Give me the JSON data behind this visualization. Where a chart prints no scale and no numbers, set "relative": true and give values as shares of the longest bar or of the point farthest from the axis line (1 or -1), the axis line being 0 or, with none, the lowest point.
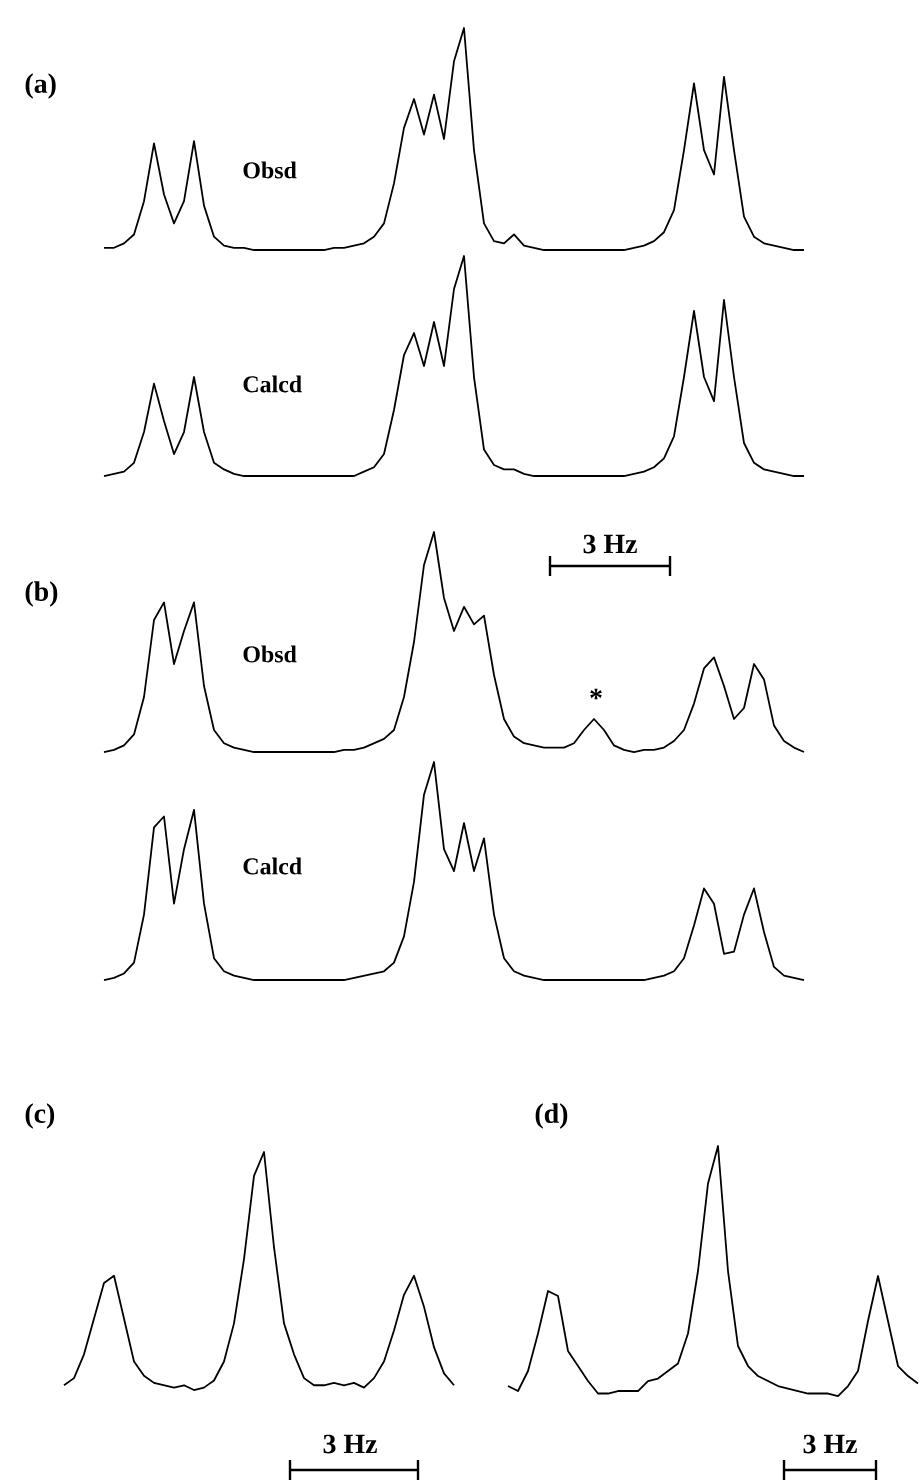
{
  "chart_data": [
    {
      "type": "line",
      "relative": true,
      "title": "(a)",
      "categories": [
        null,
        null,
        null,
        null,
        null,
        null,
        null,
        null,
        null,
        null,
        null,
        null,
        null,
        null,
        null,
        null,
        null,
        null,
        null,
        null,
        null,
        null,
        null,
        null,
        null,
        null,
        null,
        null,
        null,
        null,
        null,
        null,
        null,
        null,
        null,
        null,
        null,
        null,
        null,
        null,
        null,
        null,
        null,
        null,
        null,
        null,
        null,
        null,
        null,
        null,
        null,
        null,
        null,
        null,
        null,
        null,
        null,
        null,
        null,
        null,
        null,
        null,
        null,
        null,
        null,
        null,
        null,
        null,
        null,
        null,
        null
      ],
      "series": [
        {
          "name": "Obsd",
          "color": "#000000",
          "values": [
            0.01,
            0.01,
            0.03,
            0.07,
            0.22,
            0.48,
            0.25,
            0.12,
            0.22,
            0.49,
            0.2,
            0.06,
            0.02,
            0.01,
            0.01,
            0,
            0,
            0,
            0,
            0,
            0,
            0,
            0,
            0.01,
            0.01,
            0.02,
            0.03,
            0.06,
            0.12,
            0.3,
            0.55,
            0.68,
            0.52,
            0.7,
            0.5,
            0.85,
            1,
            0.45,
            0.12,
            0.04,
            0.03,
            0.07,
            0.02,
            0.01,
            0,
            0,
            0,
            0,
            0,
            0,
            0,
            0,
            0,
            0.01,
            0.02,
            0.04,
            0.08,
            0.18,
            0.45,
            0.75,
            0.45,
            0.34,
            0.78,
            0.45,
            0.15,
            0.06,
            0.03,
            0.02,
            0.01,
            0,
            0
          ]
        }
      ]
    },
    {
      "type": "line",
      "relative": true,
      "categories": [
        null,
        null,
        null,
        null,
        null,
        null,
        null,
        null,
        null,
        null,
        null,
        null,
        null,
        null,
        null,
        null,
        null,
        null,
        null,
        null,
        null,
        null,
        null,
        null,
        null,
        null,
        null,
        null,
        null,
        null,
        null,
        null,
        null,
        null,
        null,
        null,
        null,
        null,
        null,
        null,
        null,
        null,
        null,
        null,
        null,
        null,
        null,
        null,
        null,
        null,
        null,
        null,
        null,
        null,
        null,
        null,
        null,
        null,
        null,
        null,
        null,
        null,
        null,
        null,
        null,
        null,
        null,
        null,
        null,
        null,
        null
      ],
      "series": [
        {
          "name": "Calcd",
          "color": "#000000",
          "values": [
            0,
            0.01,
            0.02,
            0.06,
            0.2,
            0.42,
            0.25,
            0.1,
            0.2,
            0.45,
            0.2,
            0.06,
            0.03,
            0.01,
            0,
            0,
            0,
            0,
            0,
            0,
            0,
            0,
            0,
            0,
            0,
            0,
            0.02,
            0.04,
            0.1,
            0.3,
            0.55,
            0.65,
            0.5,
            0.7,
            0.5,
            0.85,
            1,
            0.45,
            0.12,
            0.05,
            0.03,
            0.03,
            0.01,
            0,
            0,
            0,
            0,
            0,
            0,
            0,
            0,
            0,
            0,
            0.01,
            0.02,
            0.04,
            0.08,
            0.18,
            0.45,
            0.75,
            0.45,
            0.34,
            0.8,
            0.45,
            0.15,
            0.06,
            0.03,
            0.02,
            0.01,
            0,
            0
          ]
        }
      ]
    },
    {
      "type": "line",
      "relative": true,
      "title": "(b)",
      "annotations": [
        "3 Hz",
        "*"
      ],
      "categories": [
        null,
        null,
        null,
        null,
        null,
        null,
        null,
        null,
        null,
        null,
        null,
        null,
        null,
        null,
        null,
        null,
        null,
        null,
        null,
        null,
        null,
        null,
        null,
        null,
        null,
        null,
        null,
        null,
        null,
        null,
        null,
        null,
        null,
        null,
        null,
        null,
        null,
        null,
        null,
        null,
        null,
        null,
        null,
        null,
        null,
        null,
        null,
        null,
        null,
        null,
        null,
        null,
        null,
        null,
        null,
        null,
        null,
        null,
        null,
        null,
        null,
        null,
        null,
        null,
        null,
        null,
        null,
        null,
        null,
        null,
        null
      ],
      "series": [
        {
          "name": "Obsd",
          "color": "#000000",
          "values": [
            0,
            0.01,
            0.03,
            0.08,
            0.25,
            0.6,
            0.68,
            0.4,
            0.55,
            0.68,
            0.3,
            0.1,
            0.04,
            0.02,
            0.01,
            0,
            0,
            0,
            0,
            0,
            0,
            0,
            0,
            0,
            0.01,
            0.01,
            0.02,
            0.04,
            0.06,
            0.1,
            0.25,
            0.5,
            0.85,
            1,
            0.7,
            0.55,
            0.66,
            0.58,
            0.62,
            0.35,
            0.15,
            0.07,
            0.04,
            0.03,
            0.02,
            0.02,
            0.02,
            0.04,
            0.1,
            0.15,
            0.1,
            0.03,
            0.01,
            0,
            0.01,
            0.01,
            0.02,
            0.05,
            0.1,
            0.22,
            0.38,
            0.43,
            0.3,
            0.15,
            0.2,
            0.4,
            0.33,
            0.12,
            0.05,
            0.02,
            0
          ]
        }
      ]
    },
    {
      "type": "line",
      "relative": true,
      "categories": [
        null,
        null,
        null,
        null,
        null,
        null,
        null,
        null,
        null,
        null,
        null,
        null,
        null,
        null,
        null,
        null,
        null,
        null,
        null,
        null,
        null,
        null,
        null,
        null,
        null,
        null,
        null,
        null,
        null,
        null,
        null,
        null,
        null,
        null,
        null,
        null,
        null,
        null,
        null,
        null,
        null,
        null,
        null,
        null,
        null,
        null,
        null,
        null,
        null,
        null,
        null,
        null,
        null,
        null,
        null,
        null,
        null,
        null,
        null,
        null,
        null,
        null,
        null,
        null,
        null,
        null,
        null,
        null,
        null,
        null,
        null
      ],
      "series": [
        {
          "name": "Calcd",
          "color": "#000000",
          "values": [
            0,
            0.01,
            0.03,
            0.08,
            0.3,
            0.7,
            0.75,
            0.35,
            0.6,
            0.78,
            0.35,
            0.1,
            0.04,
            0.02,
            0.01,
            0,
            0,
            0,
            0,
            0,
            0,
            0,
            0,
            0,
            0,
            0.01,
            0.02,
            0.03,
            0.04,
            0.08,
            0.2,
            0.45,
            0.85,
            1,
            0.6,
            0.5,
            0.72,
            0.5,
            0.65,
            0.3,
            0.1,
            0.04,
            0.02,
            0.01,
            0,
            0,
            0,
            0,
            0,
            0,
            0,
            0,
            0,
            0,
            0,
            0.01,
            0.02,
            0.04,
            0.1,
            0.25,
            0.42,
            0.35,
            0.12,
            0.13,
            0.3,
            0.42,
            0.22,
            0.06,
            0.02,
            0.01,
            0
          ]
        }
      ]
    },
    {
      "type": "line",
      "relative": true,
      "title": "(c)",
      "annotations": [
        "3 Hz"
      ],
      "categories": [
        null,
        null,
        null,
        null,
        null,
        null,
        null,
        null,
        null,
        null,
        null,
        null,
        null,
        null,
        null,
        null,
        null,
        null,
        null,
        null,
        null,
        null,
        null,
        null,
        null,
        null,
        null,
        null,
        null,
        null,
        null,
        null,
        null,
        null,
        null,
        null,
        null,
        null,
        null,
        null
      ],
      "series": [
        {
          "color": "#000000",
          "values": [
            0.02,
            0.05,
            0.15,
            0.3,
            0.45,
            0.48,
            0.3,
            0.12,
            0.06,
            0.03,
            0.02,
            0.01,
            0.02,
            0,
            0.01,
            0.04,
            0.12,
            0.28,
            0.55,
            0.9,
            1,
            0.6,
            0.28,
            0.15,
            0.05,
            0.02,
            0.02,
            0.03,
            0.02,
            0.03,
            0.01,
            0.05,
            0.12,
            0.25,
            0.4,
            0.48,
            0.35,
            0.18,
            0.07,
            0.02
          ]
        }
      ]
    },
    {
      "type": "line",
      "relative": true,
      "title": "(d)",
      "annotations": [
        "3 Hz"
      ],
      "categories": [
        null,
        null,
        null,
        null,
        null,
        null,
        null,
        null,
        null,
        null,
        null,
        null,
        null,
        null,
        null,
        null,
        null,
        null,
        null,
        null,
        null,
        null,
        null,
        null,
        null,
        null,
        null,
        null,
        null,
        null,
        null,
        null,
        null,
        null,
        null,
        null,
        null,
        null,
        null,
        null,
        null,
        null
      ],
      "series": [
        {
          "color": "#000000",
          "values": [
            0.04,
            0.02,
            0.1,
            0.25,
            0.42,
            0.4,
            0.18,
            0.12,
            0.06,
            0.01,
            0.01,
            0.02,
            0.02,
            0.02,
            0.06,
            0.07,
            0.1,
            0.13,
            0.25,
            0.5,
            0.85,
            1,
            0.5,
            0.2,
            0.12,
            0.08,
            0.06,
            0.04,
            0.03,
            0.02,
            0.01,
            0.01,
            0.01,
            0,
            0.04,
            0.1,
            0.3,
            0.48,
            0.3,
            0.12,
            0.08,
            0.05
          ]
        }
      ]
    }
  ]
}
